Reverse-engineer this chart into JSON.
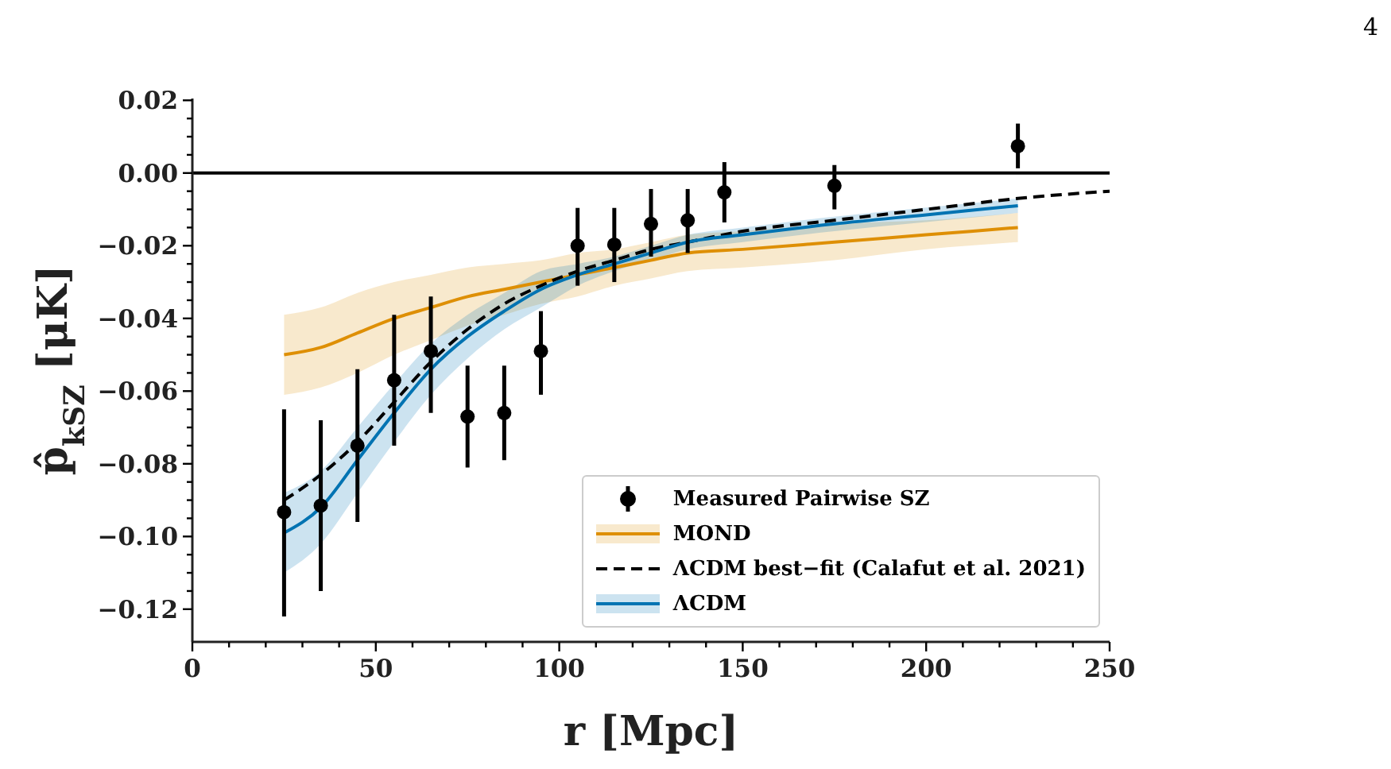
{
  "chart_data": {
    "type": "line",
    "xlabel": "r [Mpc]",
    "ylabel": "p̂$_{kSZ}$ [μK]",
    "annotations": [
      "4"
    ],
    "xlim": [
      0,
      250
    ],
    "ylim": [
      -0.129,
      0.0205
    ],
    "xticks": [
      0,
      {
        "value": 10,
        "label": null
      },
      {
        "value": 20,
        "label": null
      },
      {
        "value": 30,
        "label": null
      },
      {
        "value": 40,
        "label": null
      },
      50,
      {
        "value": 60,
        "label": null
      },
      {
        "value": 70,
        "label": null
      },
      {
        "value": 80,
        "label": null
      },
      {
        "value": 90,
        "label": null
      },
      100,
      {
        "value": 110,
        "label": null
      },
      {
        "value": 120,
        "label": null
      },
      {
        "value": 130,
        "label": null
      },
      {
        "value": 140,
        "label": null
      },
      150,
      {
        "value": 160,
        "label": null
      },
      {
        "value": 170,
        "label": null
      },
      {
        "value": 180,
        "label": null
      },
      {
        "value": 190,
        "label": null
      },
      200,
      {
        "value": 210,
        "label": null
      },
      {
        "value": 220,
        "label": null
      },
      {
        "value": 230,
        "label": null
      },
      {
        "value": 240,
        "label": null
      },
      250
    ],
    "yticks": [
      {
        "value": -0.12,
        "label": "−0.12"
      },
      {
        "value": -0.115,
        "label": null
      },
      {
        "value": -0.11,
        "label": null
      },
      {
        "value": -0.105,
        "label": null
      },
      {
        "value": -0.1,
        "label": "−0.10"
      },
      {
        "value": -0.095,
        "label": null
      },
      {
        "value": -0.09,
        "label": null
      },
      {
        "value": -0.085,
        "label": null
      },
      {
        "value": -0.08,
        "label": "−0.08"
      },
      {
        "value": -0.075,
        "label": null
      },
      {
        "value": -0.07,
        "label": null
      },
      {
        "value": -0.065,
        "label": null
      },
      {
        "value": -0.06,
        "label": "−0.06"
      },
      {
        "value": -0.055,
        "label": null
      },
      {
        "value": -0.05,
        "label": null
      },
      {
        "value": -0.045,
        "label": null
      },
      {
        "value": -0.04,
        "label": "−0.04"
      },
      {
        "value": -0.035,
        "label": null
      },
      {
        "value": -0.03,
        "label": null
      },
      {
        "value": -0.025,
        "label": null
      },
      {
        "value": -0.02,
        "label": "−0.02"
      },
      {
        "value": -0.015,
        "label": null
      },
      {
        "value": -0.01,
        "label": null
      },
      {
        "value": -0.005,
        "label": null
      },
      {
        "value": 0,
        "label": "0.00"
      },
      {
        "value": 0.005,
        "label": null
      },
      {
        "value": 0.01,
        "label": null
      },
      {
        "value": 0.015,
        "label": null
      },
      {
        "value": 0.02,
        "label": "0.02"
      }
    ],
    "grid": false,
    "legend": "bottom right",
    "ref_lines": [
      {
        "axis": "y",
        "value": 0,
        "color": "#000000"
      }
    ],
    "series": [
      {
        "name": "Measured Pairwise SZ",
        "type": "scatter",
        "marker": "circle",
        "color": "#000000",
        "x": [
          25,
          35,
          45,
          55,
          65,
          75,
          85,
          95,
          105,
          115,
          125,
          135,
          145,
          175,
          225
        ],
        "values": [
          -0.0933,
          -0.0915,
          -0.075,
          -0.057,
          -0.049,
          -0.067,
          -0.066,
          -0.049,
          -0.02,
          -0.0197,
          -0.014,
          -0.013,
          -0.0053,
          -0.0035,
          0.0074
        ],
        "errors": [
          [
            -0.122,
            -0.065
          ],
          [
            -0.115,
            -0.068
          ],
          [
            -0.096,
            -0.054
          ],
          [
            -0.075,
            -0.039
          ],
          [
            -0.066,
            -0.034
          ],
          [
            -0.081,
            -0.053
          ],
          [
            -0.079,
            -0.053
          ],
          [
            -0.061,
            -0.038
          ],
          [
            -0.031,
            -0.0096
          ],
          [
            -0.03,
            -0.0096
          ],
          [
            -0.023,
            -0.0044
          ],
          [
            -0.022,
            -0.0044
          ],
          [
            -0.0136,
            0.003
          ],
          [
            -0.01,
            0.0022
          ],
          [
            0.0013,
            0.0136
          ]
        ]
      },
      {
        "name": "MOND",
        "type": "line",
        "marker": "none",
        "line_style": "solid",
        "color": "#de8f05",
        "x": [
          25,
          35,
          45,
          55,
          65,
          75,
          85,
          95,
          105,
          115,
          125,
          135,
          150,
          175,
          200,
          225
        ],
        "values": [
          -0.05,
          -0.048,
          -0.044,
          -0.04,
          -0.037,
          -0.034,
          -0.032,
          -0.03,
          -0.028,
          -0.026,
          -0.024,
          -0.022,
          -0.021,
          -0.019,
          -0.017,
          -0.015
        ],
        "lower": [
          -0.061,
          -0.059,
          -0.055,
          -0.05,
          -0.046,
          -0.042,
          -0.039,
          -0.036,
          -0.034,
          -0.031,
          -0.029,
          -0.027,
          -0.026,
          -0.024,
          -0.021,
          -0.019
        ],
        "upper": [
          -0.039,
          -0.037,
          -0.033,
          -0.03,
          -0.028,
          -0.026,
          -0.025,
          -0.024,
          -0.022,
          -0.021,
          -0.019,
          -0.017,
          -0.016,
          -0.014,
          -0.013,
          -0.011
        ]
      },
      {
        "name": "ΛCDM best−fit (Calafut et al. 2021)",
        "type": "line",
        "marker": "none",
        "line_style": "dashed",
        "color": "#000000",
        "x": [
          25,
          35,
          45,
          55,
          65,
          75,
          85,
          95,
          105,
          115,
          125,
          135,
          150,
          175,
          200,
          225,
          250
        ],
        "values": [
          -0.09,
          -0.083,
          -0.074,
          -0.063,
          -0.052,
          -0.043,
          -0.036,
          -0.031,
          -0.027,
          -0.024,
          -0.021,
          -0.019,
          -0.016,
          -0.013,
          -0.01,
          -0.007,
          -0.005
        ]
      },
      {
        "name": "ΛCDM",
        "type": "line",
        "marker": "none",
        "line_style": "solid",
        "color": "#0173b2",
        "x": [
          25,
          35,
          45,
          55,
          65,
          75,
          85,
          95,
          105,
          115,
          125,
          135,
          150,
          175,
          200,
          225
        ],
        "values": [
          -0.099,
          -0.092,
          -0.079,
          -0.066,
          -0.054,
          -0.045,
          -0.038,
          -0.032,
          -0.028,
          -0.025,
          -0.022,
          -0.019,
          -0.017,
          -0.014,
          -0.0115,
          -0.009
        ],
        "lower": [
          -0.11,
          -0.102,
          -0.088,
          -0.074,
          -0.061,
          -0.051,
          -0.043,
          -0.037,
          -0.031,
          -0.027,
          -0.024,
          -0.021,
          -0.019,
          -0.016,
          -0.0135,
          -0.011
        ],
        "upper": [
          -0.088,
          -0.082,
          -0.07,
          -0.058,
          -0.047,
          -0.039,
          -0.033,
          -0.027,
          -0.025,
          -0.023,
          -0.02,
          -0.017,
          -0.015,
          -0.012,
          -0.0095,
          -0.007
        ]
      }
    ]
  }
}
